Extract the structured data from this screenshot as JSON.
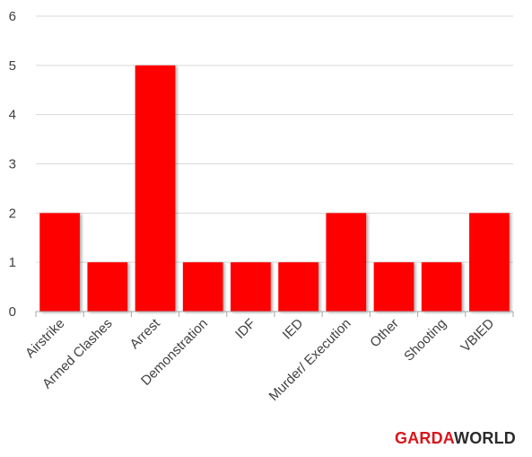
{
  "chart_data": {
    "type": "bar",
    "categories": [
      "Airstrike",
      "Armed Clashes",
      "Arrest",
      "Demonstration",
      "IDF",
      "IED",
      "Murder/ Execution",
      "Other",
      "Shooting",
      "VBIED"
    ],
    "values": [
      2,
      1,
      5,
      1,
      1,
      1,
      2,
      1,
      1,
      2
    ],
    "ylim": [
      0,
      6
    ],
    "yticks": [
      0,
      1,
      2,
      3,
      4,
      5,
      6
    ],
    "grid": true,
    "legend": "none",
    "colors": {
      "bar": "#ff0000",
      "grid": "#d9d9d9",
      "axis": "#a6a6a6",
      "text": "#404040"
    }
  },
  "brand": {
    "logo_left": "GARDA",
    "logo_right": "WORLD"
  }
}
